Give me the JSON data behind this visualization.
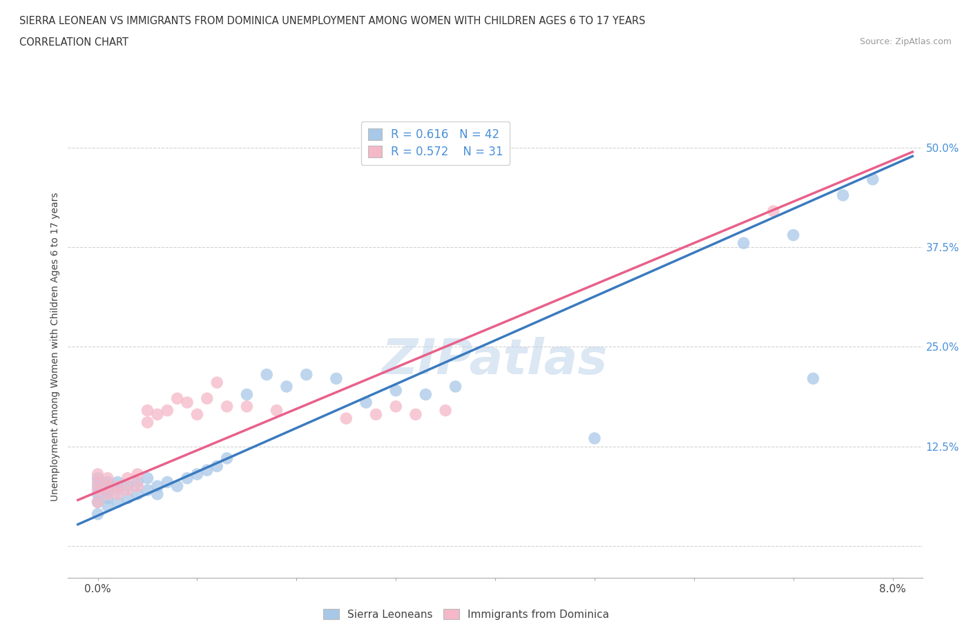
{
  "title_line1": "SIERRA LEONEAN VS IMMIGRANTS FROM DOMINICA UNEMPLOYMENT AMONG WOMEN WITH CHILDREN AGES 6 TO 17 YEARS",
  "title_line2": "CORRELATION CHART",
  "source": "Source: ZipAtlas.com",
  "ylabel": "Unemployment Among Women with Children Ages 6 to 17 years",
  "xlim": [
    -0.002,
    0.082
  ],
  "ylim": [
    -0.04,
    0.54
  ],
  "xtick_positions": [
    0.0,
    0.01,
    0.02,
    0.03,
    0.04,
    0.05,
    0.06,
    0.07,
    0.08
  ],
  "xtick_labels_shown": {
    "0.0": "0.0%",
    "0.08": "8.0%"
  },
  "yticks": [
    0.0,
    0.125,
    0.25,
    0.375,
    0.5
  ],
  "yticklabels": [
    "",
    "12.5%",
    "25.0%",
    "37.5%",
    "50.0%"
  ],
  "legend_r1": "R = 0.616",
  "legend_n1": "N = 42",
  "legend_r2": "R = 0.572",
  "legend_n2": "N = 31",
  "color_sl": "#a8c8e8",
  "color_dom": "#f4b8c8",
  "line_color_sl": "#3a7abf",
  "line_color_dom": "#e8608a",
  "tick_label_color": "#4a90d9",
  "background_color": "#ffffff",
  "grid_color": "#cccccc",
  "sl_x": [
    0.0,
    0.0,
    0.0,
    0.0,
    0.0,
    0.001,
    0.001,
    0.001,
    0.001,
    0.002,
    0.002,
    0.002,
    0.003,
    0.003,
    0.004,
    0.004,
    0.005,
    0.005,
    0.006,
    0.006,
    0.007,
    0.008,
    0.009,
    0.01,
    0.011,
    0.012,
    0.013,
    0.015,
    0.017,
    0.019,
    0.021,
    0.024,
    0.027,
    0.03,
    0.033,
    0.036,
    0.05,
    0.065,
    0.07,
    0.072,
    0.075,
    0.078
  ],
  "sl_y": [
    0.04,
    0.055,
    0.065,
    0.075,
    0.085,
    0.05,
    0.06,
    0.07,
    0.08,
    0.055,
    0.07,
    0.08,
    0.06,
    0.075,
    0.065,
    0.08,
    0.07,
    0.085,
    0.065,
    0.075,
    0.08,
    0.075,
    0.085,
    0.09,
    0.095,
    0.1,
    0.11,
    0.19,
    0.215,
    0.2,
    0.215,
    0.21,
    0.18,
    0.195,
    0.19,
    0.2,
    0.135,
    0.38,
    0.39,
    0.21,
    0.44,
    0.46
  ],
  "dom_x": [
    0.0,
    0.0,
    0.0,
    0.0,
    0.001,
    0.001,
    0.001,
    0.002,
    0.002,
    0.003,
    0.003,
    0.004,
    0.004,
    0.005,
    0.005,
    0.006,
    0.007,
    0.008,
    0.009,
    0.01,
    0.011,
    0.012,
    0.013,
    0.015,
    0.018,
    0.025,
    0.028,
    0.03,
    0.032,
    0.035,
    0.068
  ],
  "dom_y": [
    0.055,
    0.07,
    0.08,
    0.09,
    0.065,
    0.075,
    0.085,
    0.065,
    0.075,
    0.07,
    0.085,
    0.075,
    0.09,
    0.155,
    0.17,
    0.165,
    0.17,
    0.185,
    0.18,
    0.165,
    0.185,
    0.205,
    0.175,
    0.175,
    0.17,
    0.16,
    0.165,
    0.175,
    0.165,
    0.17,
    0.42
  ]
}
